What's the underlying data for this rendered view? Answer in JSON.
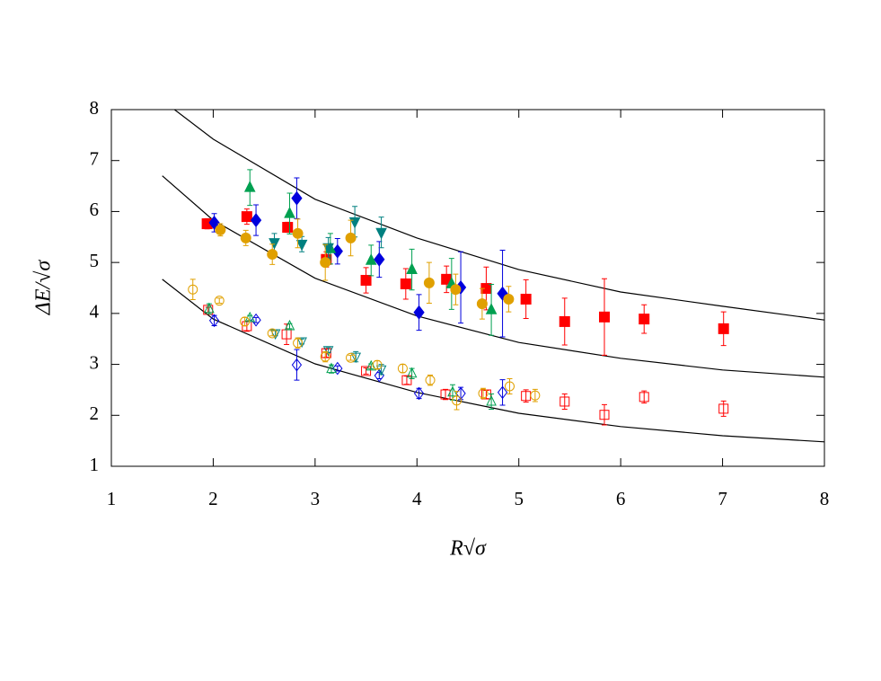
{
  "chart_data": {
    "type": "scatter",
    "xlabel": "R√σ",
    "ylabel": "ΔE/√σ",
    "xlim": [
      1,
      8
    ],
    "ylim": [
      1,
      8
    ],
    "xticks": [
      1,
      2,
      3,
      4,
      5,
      6,
      7,
      8
    ],
    "yticks": [
      1,
      2,
      3,
      4,
      5,
      6,
      7,
      8
    ],
    "series": [
      {
        "marker": "square",
        "filled": true,
        "color": "#ff0000",
        "x": [
          1.94,
          2.33,
          2.73,
          3.11,
          3.5,
          3.89,
          4.29,
          4.68,
          5.07,
          5.45,
          5.84,
          6.23,
          7.01
        ],
        "values": [
          5.76,
          5.9,
          5.69,
          5.06,
          4.65,
          4.58,
          4.67,
          4.49,
          4.28,
          3.84,
          3.93,
          3.89,
          3.7
        ],
        "errors": [
          0.1,
          0.15,
          0.1,
          0.15,
          0.25,
          0.3,
          0.26,
          0.42,
          0.38,
          0.46,
          0.75,
          0.28,
          0.33
        ]
      },
      {
        "marker": "diamond",
        "filled": true,
        "color": "#0000dd",
        "x": [
          2.01,
          2.42,
          2.82,
          3.22,
          3.63,
          4.02,
          4.43,
          4.84
        ],
        "values": [
          5.78,
          5.83,
          6.26,
          5.22,
          5.06,
          4.02,
          4.51,
          4.39
        ],
        "errors": [
          0.18,
          0.3,
          0.4,
          0.25,
          0.35,
          0.35,
          0.7,
          0.85
        ]
      },
      {
        "marker": "triangle",
        "filled": true,
        "color": "#00a050",
        "x": [
          2.36,
          2.75,
          3.15,
          3.55,
          3.95,
          4.34,
          4.73
        ],
        "values": [
          6.47,
          5.96,
          5.27,
          5.04,
          4.86,
          4.58,
          4.07
        ],
        "errors": [
          0.35,
          0.4,
          0.3,
          0.3,
          0.4,
          0.5,
          0.5
        ]
      },
      {
        "marker": "down",
        "filled": true,
        "color": "#008080",
        "x": [
          2.6,
          2.87,
          3.13,
          3.39,
          3.65
        ],
        "values": [
          5.39,
          5.36,
          5.29,
          5.8,
          5.59
        ],
        "errors": [
          0.18,
          0.15,
          0.2,
          0.3,
          0.3
        ]
      },
      {
        "marker": "circle",
        "filled": true,
        "color": "#e0a000",
        "x": [
          2.07,
          2.32,
          2.58,
          2.83,
          3.1,
          3.35,
          4.12,
          4.38,
          4.64,
          4.9
        ],
        "values": [
          5.64,
          5.48,
          5.16,
          5.57,
          5.0,
          5.48,
          4.6,
          4.47,
          4.19,
          4.28
        ],
        "errors": [
          0.12,
          0.15,
          0.2,
          0.28,
          0.35,
          0.35,
          0.4,
          0.3,
          0.3,
          0.25
        ]
      },
      {
        "marker": "square",
        "filled": false,
        "color": "#ff0000",
        "x": [
          1.95,
          2.33,
          2.72,
          3.11,
          3.5,
          3.9,
          4.28,
          4.68,
          5.07,
          5.45,
          5.84,
          6.23,
          7.01
        ],
        "values": [
          4.07,
          3.75,
          3.59,
          3.22,
          2.87,
          2.69,
          2.41,
          2.41,
          2.38,
          2.27,
          2.01,
          2.36,
          2.13
        ],
        "errors": [
          0.05,
          0.1,
          0.2,
          0.08,
          0.06,
          0.08,
          0.1,
          0.08,
          0.12,
          0.15,
          0.2,
          0.12,
          0.15
        ]
      },
      {
        "marker": "diamond",
        "filled": false,
        "color": "#0000dd",
        "x": [
          2.01,
          2.42,
          2.82,
          3.22,
          3.63,
          4.02,
          4.43,
          4.84
        ],
        "values": [
          3.86,
          3.87,
          2.99,
          2.92,
          2.78,
          2.43,
          2.43,
          2.45
        ],
        "errors": [
          0.1,
          0.05,
          0.3,
          0.05,
          0.06,
          0.1,
          0.12,
          0.25
        ]
      },
      {
        "marker": "triangle",
        "filled": false,
        "color": "#00a050",
        "x": [
          1.96,
          2.36,
          2.75,
          3.16,
          3.55,
          3.95,
          4.35,
          4.73
        ],
        "values": [
          4.09,
          3.91,
          3.75,
          2.91,
          2.96,
          2.82,
          2.45,
          2.27
        ],
        "errors": [
          0.1,
          0.05,
          0.05,
          0.08,
          0.05,
          0.1,
          0.15,
          0.15
        ]
      },
      {
        "marker": "down",
        "filled": false,
        "color": "#008080",
        "x": [
          2.61,
          2.87,
          3.13,
          3.4,
          3.65
        ],
        "values": [
          3.61,
          3.45,
          3.28,
          3.15,
          2.9
        ],
        "errors": [
          0.05,
          0.05,
          0.05,
          0.1,
          0.1
        ]
      },
      {
        "marker": "circle",
        "filled": false,
        "color": "#e0a000",
        "x": [
          1.8,
          2.06,
          2.31,
          2.58,
          2.83,
          3.1,
          3.35,
          3.61,
          3.86,
          4.13,
          4.39,
          4.65,
          4.91,
          5.16
        ],
        "values": [
          4.47,
          4.25,
          3.84,
          3.61,
          3.42,
          3.15,
          3.13,
          2.99,
          2.92,
          2.69,
          2.29,
          2.43,
          2.57,
          2.39
        ],
        "errors": [
          0.2,
          0.05,
          0.08,
          0.05,
          0.1,
          0.1,
          0.05,
          0.08,
          0.08,
          0.1,
          0.18,
          0.1,
          0.15,
          0.12
        ]
      }
    ],
    "curves": [
      {
        "color": "#000000",
        "x": [
          1.62,
          2,
          3,
          4,
          5,
          6,
          7,
          8
        ],
        "values": [
          8,
          7.42,
          6.24,
          5.48,
          4.86,
          4.42,
          4.14,
          3.87
        ]
      },
      {
        "color": "#000000",
        "x": [
          1.5,
          2,
          3,
          4,
          5,
          6,
          7,
          8
        ],
        "values": [
          6.7,
          5.83,
          4.69,
          3.95,
          3.43,
          3.12,
          2.89,
          2.75
        ]
      },
      {
        "color": "#000000",
        "x": [
          1.5,
          2,
          3,
          4,
          5,
          6,
          7,
          8
        ],
        "values": [
          4.67,
          3.89,
          3.01,
          2.45,
          2.04,
          1.78,
          1.6,
          1.48
        ]
      }
    ]
  }
}
